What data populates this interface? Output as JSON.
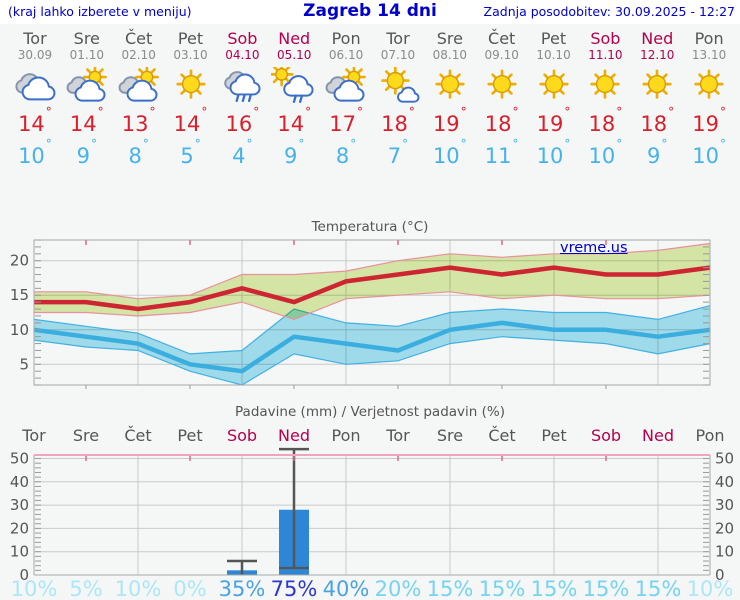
{
  "header": {
    "hint": "(kraj lahko izberete v meniju)",
    "title": "Zagreb 14 dni",
    "updated": "Zadnja posodobitev: 30.09.2025 - 12:27"
  },
  "forecast": {
    "degree_symbol": "°",
    "days": [
      {
        "name": "Tor",
        "date": "30.09",
        "weekend": false,
        "icon": "cloudy",
        "max": "14",
        "min": "10"
      },
      {
        "name": "Sre",
        "date": "01.10",
        "weekend": false,
        "icon": "partly-cloudy",
        "max": "14",
        "min": "9"
      },
      {
        "name": "Čet",
        "date": "02.10",
        "weekend": false,
        "icon": "partly-cloudy",
        "max": "13",
        "min": "8"
      },
      {
        "name": "Pet",
        "date": "03.10",
        "weekend": false,
        "icon": "sunny",
        "max": "14",
        "min": "5"
      },
      {
        "name": "Sob",
        "date": "04.10",
        "weekend": true,
        "icon": "rain",
        "max": "16",
        "min": "4"
      },
      {
        "name": "Ned",
        "date": "05.10",
        "weekend": true,
        "icon": "sun-rain",
        "max": "14",
        "min": "9"
      },
      {
        "name": "Pon",
        "date": "06.10",
        "weekend": false,
        "icon": "partly-cloudy",
        "max": "17",
        "min": "8"
      },
      {
        "name": "Tor",
        "date": "07.10",
        "weekend": false,
        "icon": "mostly-sunny",
        "max": "18",
        "min": "7"
      },
      {
        "name": "Sre",
        "date": "08.10",
        "weekend": false,
        "icon": "sunny",
        "max": "19",
        "min": "10"
      },
      {
        "name": "Čet",
        "date": "09.10",
        "weekend": false,
        "icon": "sunny",
        "max": "18",
        "min": "11"
      },
      {
        "name": "Pet",
        "date": "10.10",
        "weekend": false,
        "icon": "sunny",
        "max": "19",
        "min": "10"
      },
      {
        "name": "Sob",
        "date": "11.10",
        "weekend": true,
        "icon": "sunny",
        "max": "18",
        "min": "10"
      },
      {
        "name": "Ned",
        "date": "12.10",
        "weekend": true,
        "icon": "sunny",
        "max": "18",
        "min": "9"
      },
      {
        "name": "Pon",
        "date": "13.10",
        "weekend": false,
        "icon": "sunny",
        "max": "19",
        "min": "10"
      }
    ]
  },
  "chart_data": [
    {
      "type": "area",
      "title": "Temperatura (°C)",
      "watermark": "vreme.us",
      "categories": [
        "Tor",
        "Sre",
        "Čet",
        "Pet",
        "Sob",
        "Ned",
        "Pon",
        "Tor",
        "Sre",
        "Čet",
        "Pet",
        "Sob",
        "Ned",
        "Pon"
      ],
      "ylim": [
        2,
        23
      ],
      "yticks": [
        5,
        10,
        15,
        20
      ],
      "grid": true,
      "series": [
        {
          "name": "max_temp_range",
          "type": "band",
          "fill": "#dcedaa",
          "edge": "#e8919b",
          "upper": [
            15.5,
            15.5,
            14.5,
            15,
            18,
            18,
            18.5,
            20,
            21,
            20.5,
            21,
            21,
            21.5,
            22.5
          ],
          "lower": [
            12.5,
            12.5,
            12,
            12.5,
            14,
            11.5,
            14.5,
            15,
            15.5,
            14.5,
            15,
            14.5,
            14.5,
            15
          ]
        },
        {
          "name": "min_temp_range",
          "type": "band",
          "fill": "#a6e2f3",
          "edge": "#41b1e2",
          "upper": [
            11.5,
            10.5,
            9.5,
            6.5,
            7,
            13,
            11,
            10.5,
            12.5,
            13,
            12.5,
            12.5,
            11.5,
            13.5
          ],
          "lower": [
            8.5,
            7.5,
            7,
            4,
            2,
            6.5,
            5,
            5.5,
            8,
            9,
            8.5,
            8,
            6.5,
            8
          ]
        },
        {
          "name": "max_temp",
          "type": "line",
          "color": "#ce2533",
          "values": [
            14,
            14,
            13,
            14,
            16,
            14,
            17,
            18,
            19,
            18,
            19,
            18,
            18,
            19
          ]
        },
        {
          "name": "min_temp",
          "type": "line",
          "color": "#3aaede",
          "values": [
            10,
            9,
            8,
            5,
            4,
            9,
            8,
            7,
            10,
            11,
            10,
            10,
            9,
            10
          ]
        }
      ]
    },
    {
      "type": "bar",
      "title": "Padavine (mm) / Verjetnost padavin (%)",
      "categories": [
        "Tor",
        "Sre",
        "Čet",
        "Pet",
        "Sob",
        "Ned",
        "Pon",
        "Tor",
        "Sre",
        "Čet",
        "Pet",
        "Sob",
        "Ned",
        "Pon"
      ],
      "weekend": [
        false,
        false,
        false,
        false,
        true,
        true,
        false,
        false,
        false,
        false,
        false,
        true,
        true,
        false
      ],
      "ylim": [
        0,
        51.5
      ],
      "yticks": [
        0,
        10,
        20,
        30,
        40,
        50
      ],
      "precip_mm": [
        0,
        0,
        0,
        0,
        2,
        28,
        0,
        0,
        0,
        0,
        0,
        0,
        0,
        0
      ],
      "precip_max_mm": [
        0,
        0,
        0,
        0,
        6,
        54,
        0,
        0,
        0,
        0,
        0,
        0,
        0,
        0
      ],
      "precip_median_mm": [
        0,
        0,
        0,
        0,
        0,
        3,
        0,
        0,
        0,
        0,
        0,
        0,
        0,
        0
      ],
      "probability_labels": [
        "10%",
        "5%",
        "10%",
        "0%",
        "35%",
        "75%",
        "40%",
        "20%",
        "15%",
        "15%",
        "15%",
        "15%",
        "15%",
        "10%"
      ]
    }
  ],
  "colors": {
    "header_text": "#0000cc",
    "day_text": "#555555",
    "date_text": "#8a8a8a",
    "weekend_text": "#b4004e",
    "max_temp": "#d8202d",
    "min_temp": "#45b3ea",
    "grid": "#cacaca",
    "axis": "#a8a8a8",
    "tick": "#999999",
    "label": "#555555",
    "bar": "#2e86d6",
    "whisker": "#555555",
    "precip_top_border": "#f0a3ba",
    "pink_tick": "#e06985",
    "probability_colors": {
      "low": "#abe7f8",
      "mid": "#74d4f2",
      "high": "#49a3e2",
      "very_high": "#2b36cf"
    }
  }
}
